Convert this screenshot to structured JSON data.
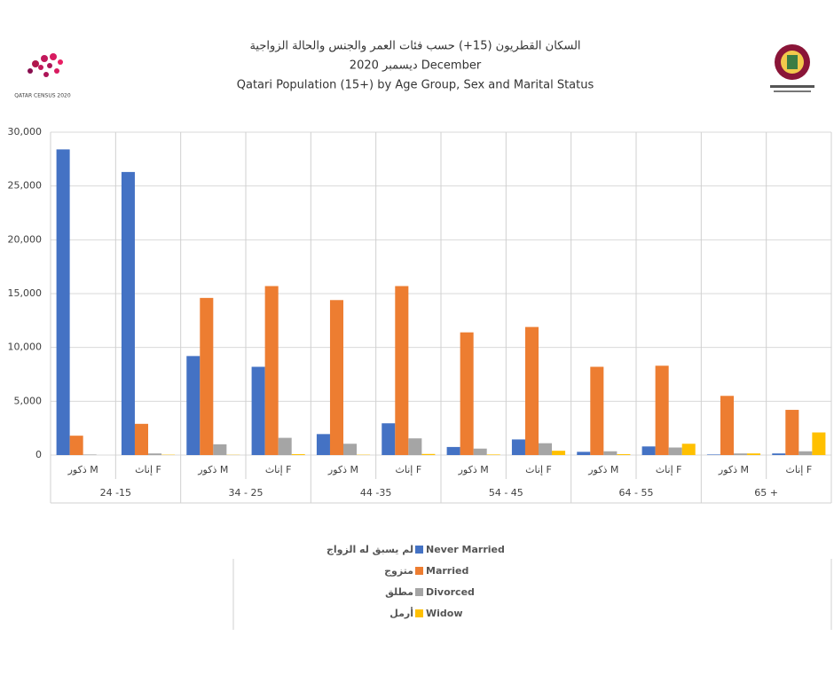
{
  "chart_data": {
    "type": "bar",
    "title_lines": [
      "السكان القطريون (15+) حسب فئات العمر والجنس والحالة الزواجية",
      "ديسمبر 2020 December",
      "Qatari Population (15+) by Age Group, Sex and Marital Status"
    ],
    "logo_text": "QATAR CENSUS 2020",
    "categories": [
      "ذكور M",
      "إناث F",
      "ذكور M",
      "إناث F",
      "ذكور M",
      "إناث F",
      "ذكور M",
      "إناث F",
      "ذكور M",
      "إناث F",
      "ذكور M",
      "إناث F"
    ],
    "group_labels": [
      "24 -15",
      "34 - 25",
      "44 -35",
      "54 - 45",
      "64 - 55",
      "65 +"
    ],
    "series": [
      {
        "name": "Never Married",
        "name_ar": "لم يسبق له الزواج",
        "color": "#4472c4",
        "values": [
          28400,
          26300,
          9200,
          8200,
          1950,
          2950,
          750,
          1450,
          300,
          800,
          50,
          150
        ]
      },
      {
        "name": "Married",
        "name_ar": "متزوج",
        "color": "#ed7d31",
        "values": [
          1800,
          2900,
          14600,
          15700,
          14400,
          15700,
          11400,
          11900,
          8200,
          8300,
          5500,
          4200
        ]
      },
      {
        "name": "Divorced",
        "name_ar": "مطلق",
        "color": "#a5a5a5",
        "values": [
          50,
          150,
          1000,
          1600,
          1050,
          1550,
          600,
          1100,
          350,
          700,
          150,
          350
        ]
      },
      {
        "name": "Widow",
        "name_ar": "أرمل",
        "color": "#ffc000",
        "values": [
          0,
          30,
          20,
          80,
          30,
          100,
          50,
          400,
          80,
          1050,
          150,
          2100
        ]
      }
    ],
    "ylim": [
      0,
      30000
    ],
    "yticks": [
      0,
      {
        "value": 5000,
        "label": "5,000"
      },
      {
        "value": 10000,
        "label": "10,000"
      },
      {
        "value": 15000,
        "label": "15,000"
      },
      {
        "value": 20000,
        "label": "20,000"
      },
      {
        "value": 25000,
        "label": "25,000"
      },
      {
        "value": 30000,
        "label": "30,000"
      }
    ],
    "grid": true
  }
}
